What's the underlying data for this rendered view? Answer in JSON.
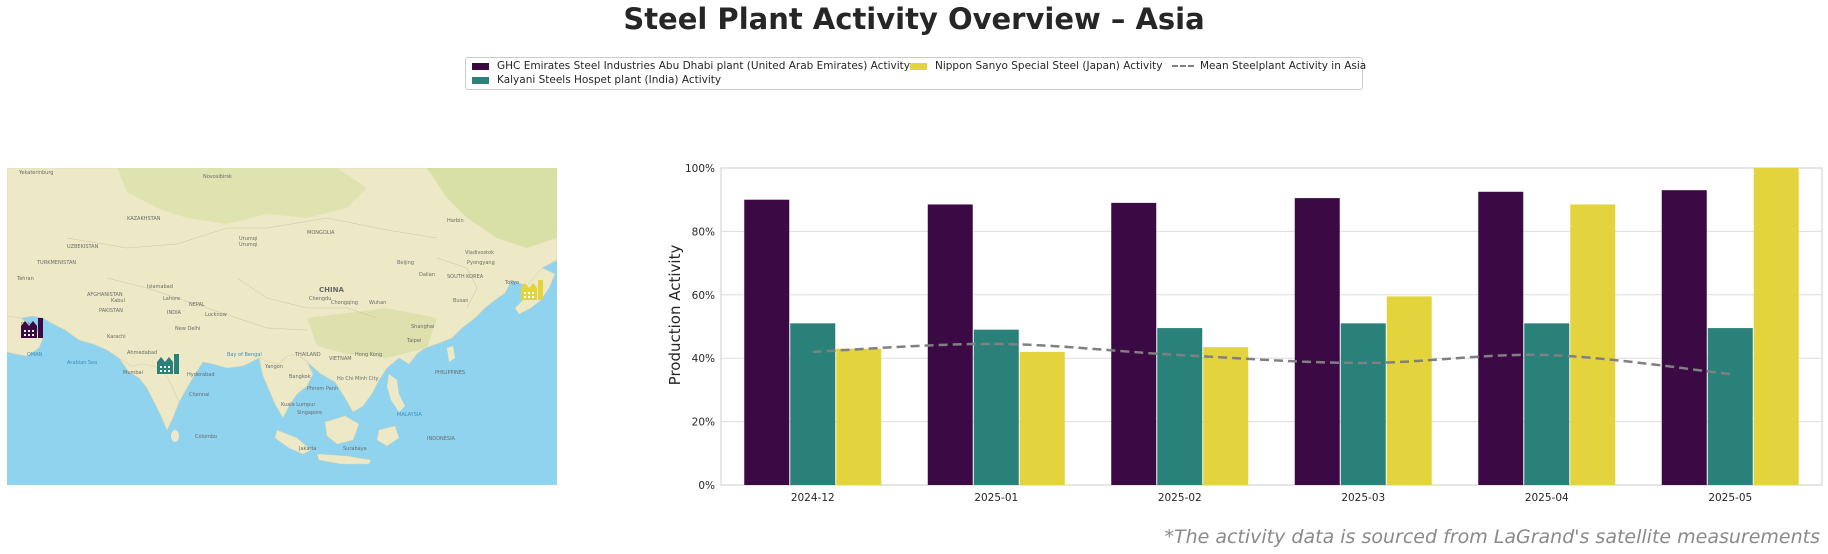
{
  "title": "Steel Plant Activity Overview – Asia",
  "footnote": "*The activity data is sourced from LaGrand's satellite measurements",
  "legend": [
    {
      "label": "GHC Emirates Steel Industries Abu Dhabi plant (United Arab Emirates) Activity",
      "color": "#3b0a45",
      "kind": "bar"
    },
    {
      "label": "Kalyani Steels Hospet plant (India) Activity",
      "color": "#2a817a",
      "kind": "bar"
    },
    {
      "label": "Nippon Sanyo Special Steel (Japan) Activity",
      "color": "#e3d33c",
      "kind": "bar"
    },
    {
      "label": "Mean Steelplant Activity in Asia",
      "color": "#808080",
      "kind": "line"
    }
  ],
  "map": {
    "plant_icons": [
      {
        "name": "GHC Emirates Steel Industries Abu Dhabi plant",
        "color": "#3b0a45",
        "icon": "factory-icon"
      },
      {
        "name": "Kalyani Steels Hospet plant",
        "color": "#2a817a",
        "icon": "factory-icon"
      },
      {
        "name": "Nippon Sanyo Special Steel",
        "color": "#e3d33c",
        "icon": "factory-icon"
      }
    ]
  },
  "chart_data": {
    "type": "bar",
    "categories": [
      "2024-12",
      "2025-01",
      "2025-02",
      "2025-03",
      "2025-04",
      "2025-05"
    ],
    "series": [
      {
        "name": "GHC Emirates Steel Industries Abu Dhabi plant (United Arab Emirates) Activity",
        "color": "#3b0a45",
        "values": [
          90,
          88.5,
          89,
          90.5,
          92.5,
          93
        ]
      },
      {
        "name": "Kalyani Steels Hospet plant (India) Activity",
        "color": "#2a817a",
        "values": [
          51,
          49,
          49.5,
          51,
          51,
          49.5
        ]
      },
      {
        "name": "Nippon Sanyo Special Steel (Japan) Activity",
        "color": "#e3d33c",
        "values": [
          43,
          42,
          43.5,
          59.5,
          88.5,
          100
        ]
      }
    ],
    "line_series": {
      "name": "Mean Steelplant Activity in Asia",
      "color": "#808080",
      "style": "dashed",
      "values": [
        42,
        44.5,
        41,
        38.5,
        41,
        35
      ]
    },
    "ylabel": "Production Activity",
    "xlabel": "",
    "ylim": [
      0,
      100
    ],
    "yticks": [
      "0%",
      "20%",
      "40%",
      "60%",
      "80%",
      "100%"
    ],
    "grid": true
  }
}
